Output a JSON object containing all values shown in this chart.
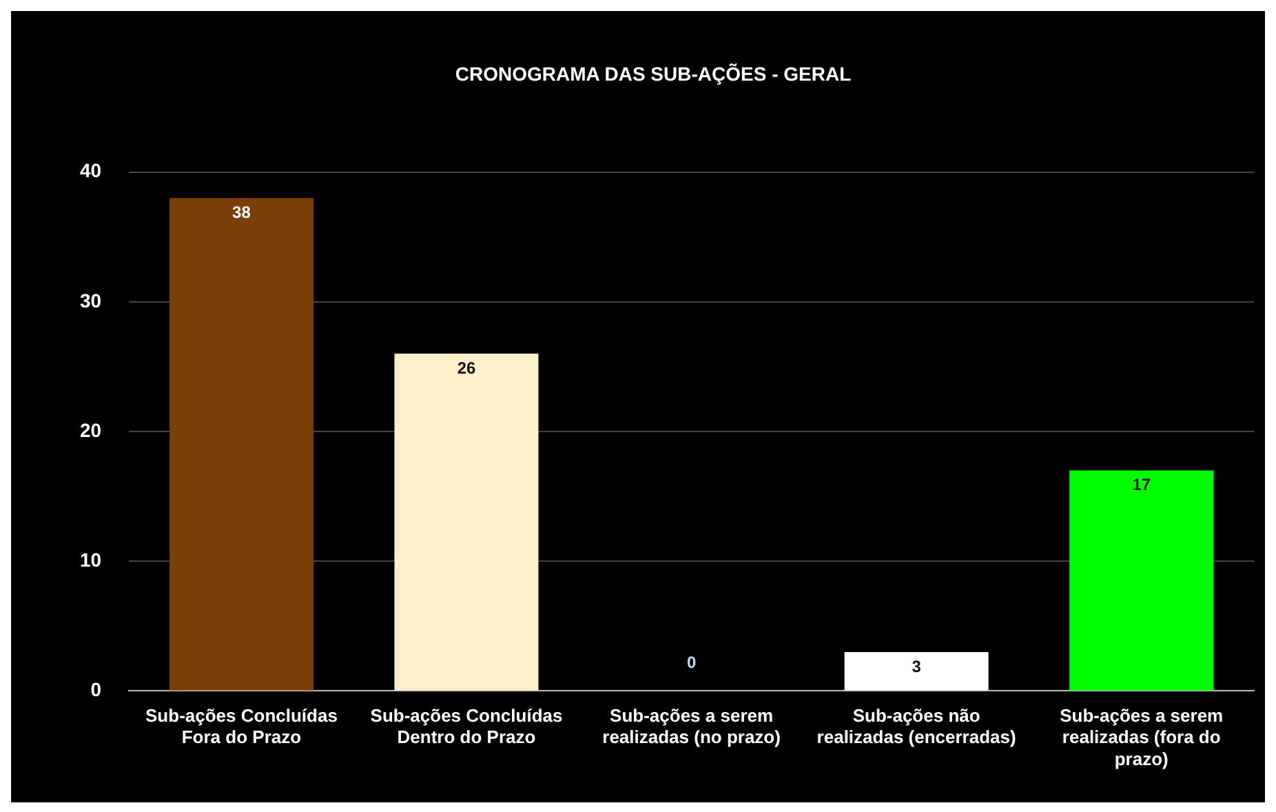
{
  "chart_data": {
    "type": "bar",
    "title": "CRONOGRAMA DAS SUB-AÇÕES - GERAL",
    "categories": [
      "Sub-ações Concluídas Fora do Prazo",
      "Sub-ações Concluídas Dentro do Prazo",
      "Sub-ações a serem realizadas (no prazo)",
      "Sub-ações não realizadas (encerradas)",
      "Sub-ações a serem realizadas (fora do prazo)"
    ],
    "values": [
      38,
      26,
      0,
      3,
      17
    ],
    "colors": [
      "#7a3f08",
      "#fdf0c9",
      "#c6d6f2",
      "#ffffff",
      "#00ff00"
    ],
    "ylim": [
      0,
      40
    ],
    "yticks": [
      0,
      10,
      20,
      30,
      40
    ],
    "grid": "y",
    "data_labels": true,
    "legend": false
  }
}
